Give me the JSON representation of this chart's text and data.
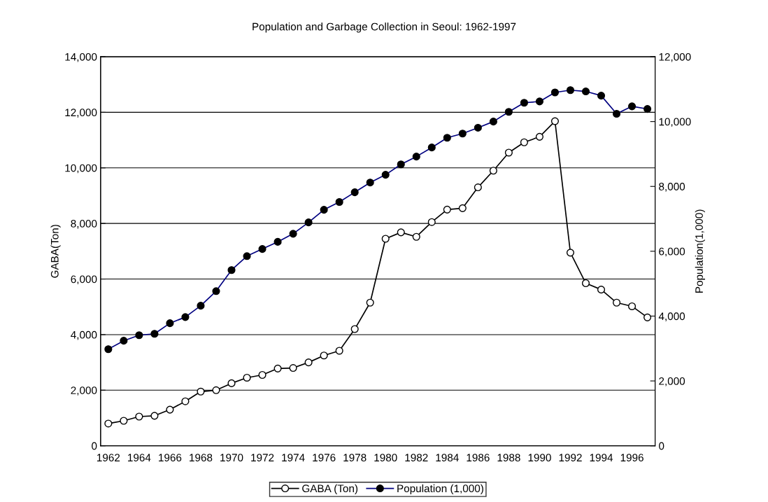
{
  "chart_data": {
    "type": "line",
    "title": "Population and Garbage Collection in Seoul: 1962-1997",
    "ylabel": "GABA(Ton)",
    "y2label": "Population(1,000)",
    "categories": [
      "1962",
      null,
      "1964",
      null,
      "1966",
      null,
      "1968",
      null,
      "1970",
      null,
      "1972",
      null,
      "1974",
      null,
      "1976",
      null,
      "1978",
      null,
      "1980",
      null,
      "1982",
      null,
      "1984",
      null,
      "1986",
      null,
      "1988",
      null,
      "1990",
      null,
      "1992",
      null,
      "1994",
      null,
      "1996",
      null
    ],
    "series": [
      {
        "name": "GABA (Ton)",
        "color": "#000000",
        "marker": "circle",
        "values": [
          800,
          900,
          1050,
          1080,
          1300,
          1600,
          1950,
          2000,
          2250,
          2450,
          2550,
          2780,
          2800,
          3000,
          3250,
          3420,
          4200,
          5150,
          7450,
          7680,
          7520,
          8050,
          8500,
          8550,
          9300,
          9900,
          10550,
          10920,
          11120,
          11680,
          6950,
          5850,
          5620,
          5150,
          5020,
          4620
        ]
      },
      {
        "name": "Population (1,000)",
        "color": "#000080",
        "marker": "circle",
        "axis": "y2",
        "values": [
          2980,
          3240,
          3410,
          3455,
          3780,
          3970,
          4320,
          4770,
          5420,
          5850,
          6070,
          6290,
          6540,
          6890,
          7280,
          7520,
          7820,
          8120,
          8360,
          8680,
          8920,
          9200,
          9500,
          9630,
          9810,
          10000,
          10300,
          10580,
          10620,
          10900,
          10970,
          10930,
          10800,
          10240,
          10470,
          10390
        ]
      }
    ],
    "ylim": [
      0,
      14000
    ],
    "yticks": [
      {
        "value": 0,
        "label": "0"
      },
      {
        "value": 2000,
        "label": "2,000"
      },
      {
        "value": 4000,
        "label": "4,000"
      },
      {
        "value": 6000,
        "label": "6,000"
      },
      {
        "value": 8000,
        "label": "8,000"
      },
      {
        "value": 10000,
        "label": "10,000"
      },
      {
        "value": 12000,
        "label": "12,000"
      },
      {
        "value": 14000,
        "label": "14,000"
      }
    ],
    "y2lim": [
      0,
      12000
    ],
    "y2ticks": [
      {
        "value": 0,
        "label": "0"
      },
      {
        "value": 2000,
        "label": "2,000"
      },
      {
        "value": 4000,
        "label": "4,000"
      },
      {
        "value": 6000,
        "label": "6,000"
      },
      {
        "value": 8000,
        "label": "8,000"
      },
      {
        "value": 10000,
        "label": "10,000"
      },
      {
        "value": 12000,
        "label": "12,000"
      }
    ],
    "grid": "y",
    "legend": "bottom"
  }
}
